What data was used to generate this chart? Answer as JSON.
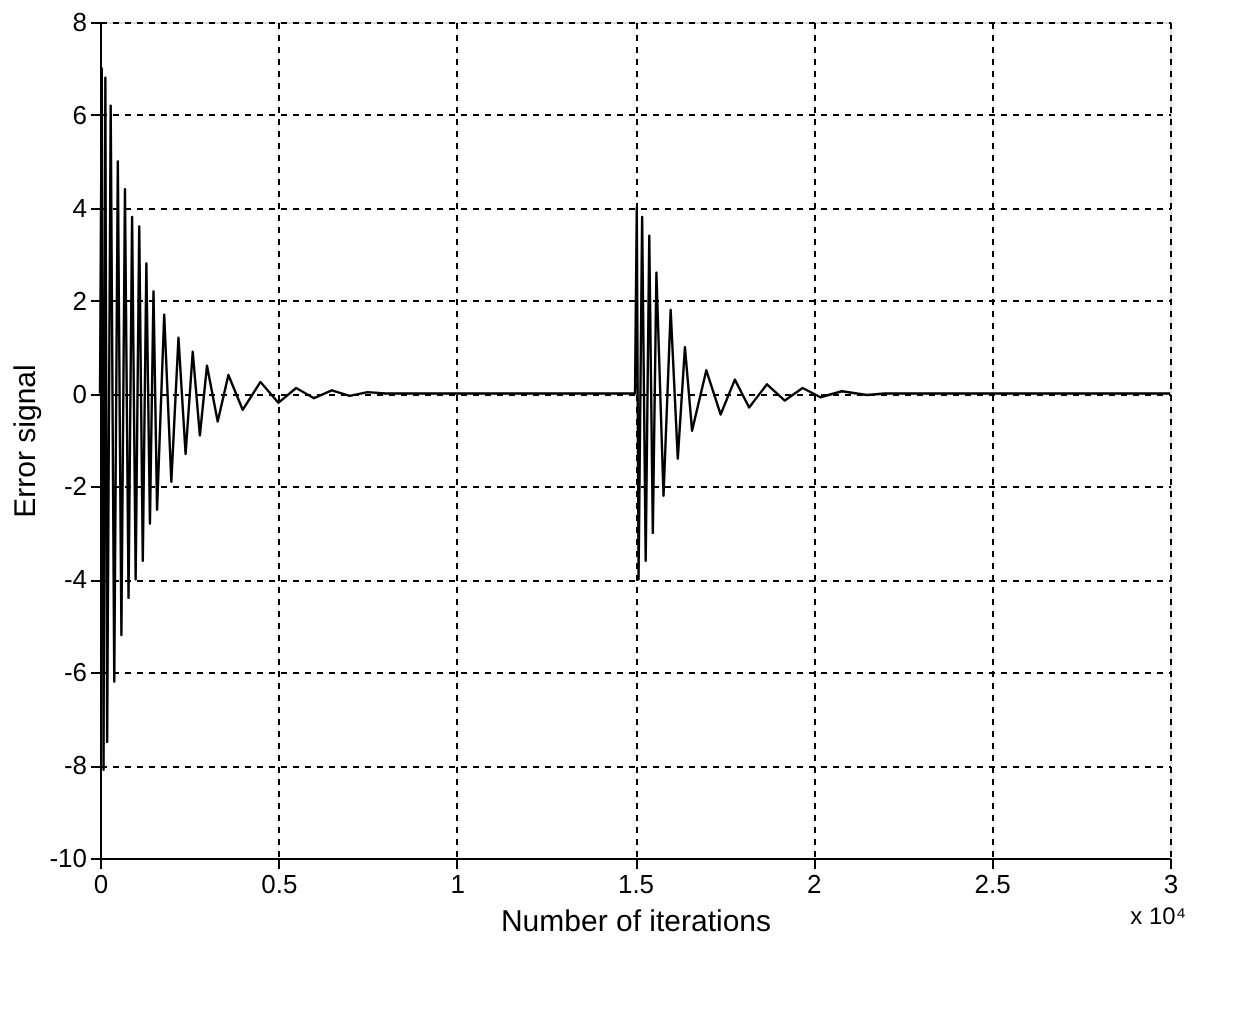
{
  "chart_data": {
    "type": "line",
    "xlabel": "Number of iterations",
    "ylabel": "Error signal",
    "x": [
      0,
      0.005,
      0.01,
      0.015,
      0.02,
      0.03,
      0.04,
      0.05,
      0.06,
      0.07,
      0.08,
      0.09,
      0.1,
      0.11,
      0.12,
      0.13,
      0.14,
      0.15,
      0.16,
      0.18,
      0.2,
      0.22,
      0.24,
      0.26,
      0.28,
      0.3,
      0.33,
      0.36,
      0.4,
      0.45,
      0.5,
      0.55,
      0.6,
      0.65,
      0.7,
      0.75,
      0.8,
      1.5,
      1.505,
      1.51,
      1.52,
      1.53,
      1.54,
      1.55,
      1.56,
      1.58,
      1.6,
      1.62,
      1.64,
      1.66,
      1.7,
      1.74,
      1.78,
      1.82,
      1.87,
      1.92,
      1.97,
      2.02,
      2.08,
      2.15,
      2.2,
      3
    ],
    "series": [
      {
        "color": "#000000",
        "values": [
          0,
          7.0,
          -8.1,
          6.8,
          -7.5,
          6.2,
          -6.2,
          5.0,
          -5.2,
          4.4,
          -4.4,
          3.8,
          -4.0,
          3.6,
          -3.6,
          2.8,
          -2.8,
          2.2,
          -2.5,
          1.7,
          -1.9,
          1.2,
          -1.3,
          0.9,
          -0.9,
          0.6,
          -0.6,
          0.4,
          -0.35,
          0.25,
          -0.2,
          0.12,
          -0.1,
          0.07,
          -0.05,
          0.03,
          0,
          0,
          4.0,
          -4.0,
          3.8,
          -3.6,
          3.4,
          -3.0,
          2.6,
          -2.2,
          1.8,
          -1.4,
          1.0,
          -0.8,
          0.5,
          -0.45,
          0.3,
          -0.3,
          0.2,
          -0.15,
          0.12,
          -0.08,
          0.05,
          -0.03,
          0,
          0
        ]
      }
    ],
    "xlim": [
      0,
      3
    ],
    "xticks": [
      0,
      0.5,
      1,
      1.5,
      2,
      2.5,
      3
    ],
    "ylim": [
      -10,
      8
    ],
    "yticks": [
      -10,
      -8,
      -6,
      -4,
      -2,
      0,
      2,
      4,
      6,
      8
    ],
    "grid": true,
    "line_style": "solid",
    "marker": "none",
    "annotations": [
      "x 10⁴"
    ]
  }
}
